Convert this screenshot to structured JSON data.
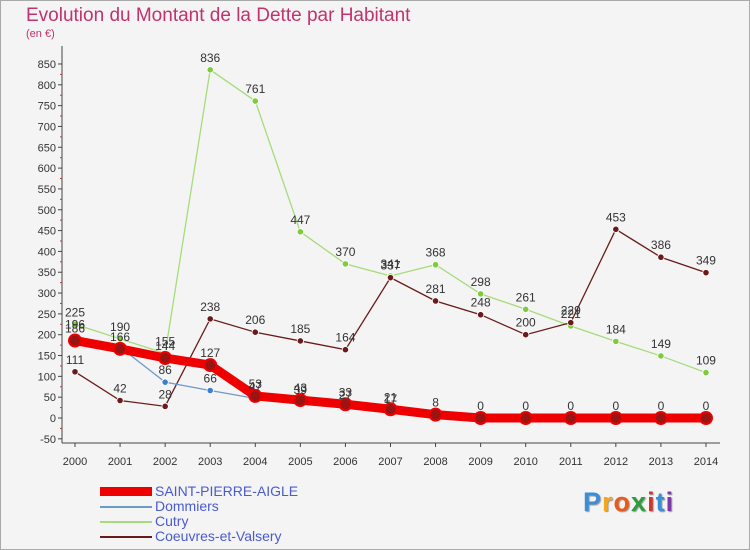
{
  "header": {
    "title": "Evolution du Montant de la Dette par Habitant",
    "unit": "(en €)"
  },
  "colors": {
    "title": "#c2326e",
    "legend_text": "#4a5bd0",
    "axis": "#444444"
  },
  "chart_data": {
    "type": "line",
    "title": "Evolution du Montant de la Dette par Habitant",
    "ylabel": "(en €)",
    "xlabel": "",
    "x": [
      "2000",
      "2001",
      "2002",
      "2003",
      "2004",
      "2005",
      "2006",
      "2007",
      "2008",
      "2009",
      "2010",
      "2011",
      "2012",
      "2013",
      "2014"
    ],
    "ylim": [
      -50,
      850
    ],
    "yticks": [
      -50,
      0,
      50,
      100,
      150,
      200,
      250,
      300,
      350,
      400,
      450,
      500,
      550,
      600,
      650,
      700,
      750,
      800,
      850
    ],
    "grid": false,
    "legend_position": "bottom-left",
    "series": [
      {
        "name": "SAINT-PIERRE-AIGLE",
        "color": "#ee0000",
        "style": "thick",
        "values": [
          186,
          166,
          144,
          127,
          53,
          43,
          33,
          21,
          8,
          0,
          0,
          0,
          0,
          0,
          0
        ],
        "labels": [
          "186",
          "166",
          "144",
          "127",
          "53",
          "43",
          "33",
          "21",
          "8",
          "0",
          "0",
          "0",
          "0",
          "0",
          "0"
        ]
      },
      {
        "name": "Dommiers",
        "color": "#6c9ac8",
        "marker": "#3a7fd0",
        "style": "thin",
        "values": [
          196,
          170,
          86,
          66,
          47,
          39,
          27,
          17,
          3,
          -4,
          -4,
          -4,
          -4,
          -4,
          -4
        ],
        "labels": [
          "196",
          "",
          "86",
          "66",
          "47",
          "39",
          "27",
          "17",
          "",
          "",
          "",
          "",
          "",
          "",
          ""
        ]
      },
      {
        "name": "Cutry",
        "color": "#a6dc7a",
        "marker": "#7dcc3a",
        "style": "thin",
        "values": [
          225,
          190,
          155,
          836,
          761,
          447,
          370,
          341,
          368,
          298,
          261,
          221,
          184,
          149,
          109
        ],
        "labels": [
          "225",
          "190",
          "155",
          "836",
          "761",
          "447",
          "370",
          "341",
          "368",
          "298",
          "261",
          "221",
          "184",
          "149",
          "109"
        ]
      },
      {
        "name": "Coeuvres-et-Valsery",
        "color": "#6a1a1a",
        "marker": "#6a1a1a",
        "style": "thin",
        "values": [
          111,
          42,
          28,
          238,
          206,
          185,
          164,
          337,
          281,
          248,
          200,
          229,
          453,
          386,
          349
        ],
        "labels": [
          "111",
          "42",
          "28",
          "238",
          "206",
          "185",
          "164",
          "337",
          "281",
          "248",
          "200",
          "229",
          "453",
          "386",
          "349"
        ]
      }
    ]
  },
  "legend": {
    "items": [
      {
        "label": "SAINT-PIERRE-AIGLE",
        "color": "#ee0000"
      },
      {
        "label": "Dommiers",
        "color": "#6c9ac8"
      },
      {
        "label": "Cutry",
        "color": "#a6dc7a"
      },
      {
        "label": "Coeuvres-et-Valsery",
        "color": "#6a1a1a"
      }
    ]
  },
  "logo": {
    "text": "Proxiti",
    "letters": [
      "P",
      "r",
      "o",
      "x",
      "i",
      "t",
      "i"
    ],
    "colors": [
      "#3a8fd8",
      "#f2a81d",
      "#e85b1a",
      "#2c9c3c",
      "#d4342c",
      "#3a8fd8",
      "#7c3aa8"
    ]
  }
}
